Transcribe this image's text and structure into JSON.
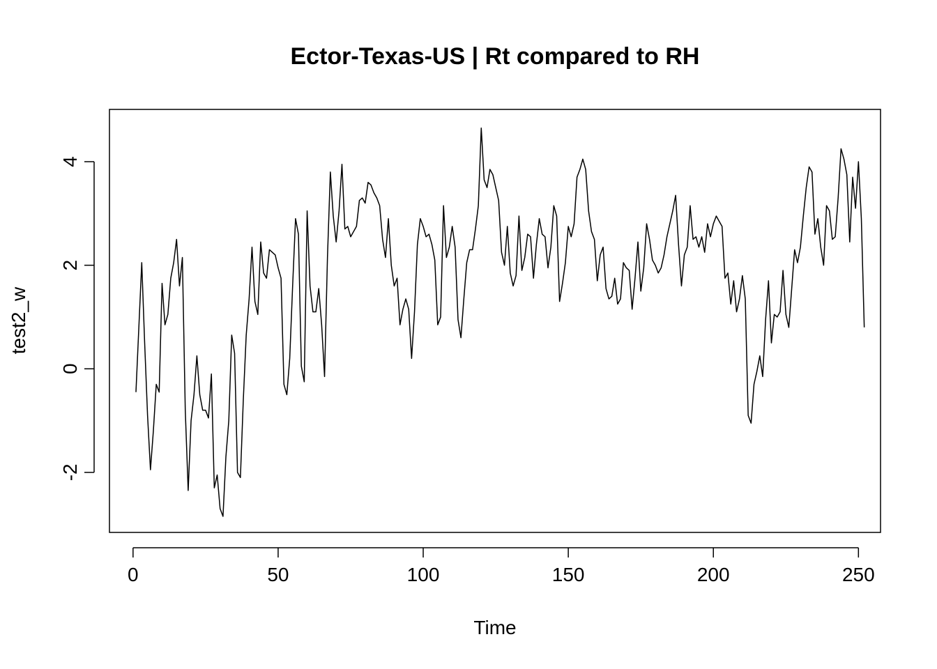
{
  "chart_data": {
    "type": "line",
    "title": "Ector-Texas-US | Rt compared to RH",
    "xlabel": "Time",
    "ylabel": "test2_w",
    "xlim": [
      1,
      248
    ],
    "ylim": [
      -2.85,
      4.7
    ],
    "x_ticks": [
      0,
      50,
      100,
      150,
      200,
      250
    ],
    "x_tick_labels": [
      "0",
      "50",
      "100",
      "150",
      "200",
      "250"
    ],
    "y_ticks": [
      -2,
      0,
      2,
      4
    ],
    "y_tick_labels": [
      "-2",
      "0",
      "2",
      "4"
    ],
    "grid": false,
    "color": "#000000",
    "series": [
      {
        "x_start": 1,
        "values": [
          -0.45,
          0.8,
          2.05,
          0.5,
          -0.9,
          -1.95,
          -1.2,
          -0.3,
          -0.45,
          1.65,
          0.85,
          1.05,
          1.75,
          2.05,
          2.5,
          1.6,
          2.15,
          -0.8,
          -2.35,
          -1.0,
          -0.5,
          0.25,
          -0.5,
          -0.8,
          -0.8,
          -0.95,
          -0.1,
          -2.3,
          -2.05,
          -2.7,
          -2.85,
          -1.7,
          -1.0,
          0.65,
          0.3,
          -2.0,
          -2.1,
          -0.6,
          0.65,
          1.35,
          2.35,
          1.3,
          1.05,
          2.45,
          1.85,
          1.75,
          2.3,
          2.25,
          2.2,
          1.95,
          1.75,
          -0.3,
          -0.5,
          0.2,
          1.6,
          2.9,
          2.6,
          0.05,
          -0.25,
          3.05,
          1.6,
          1.1,
          1.1,
          1.55,
          0.85,
          -0.15,
          2.15,
          3.8,
          2.95,
          2.45,
          3.05,
          3.95,
          2.7,
          2.75,
          2.55,
          2.65,
          2.75,
          3.25,
          3.3,
          3.2,
          3.6,
          3.55,
          3.4,
          3.3,
          3.15,
          2.5,
          2.15,
          2.9,
          2.0,
          1.6,
          1.75,
          0.85,
          1.15,
          1.35,
          1.15,
          0.2,
          1.1,
          2.4,
          2.9,
          2.75,
          2.55,
          2.6,
          2.4,
          2.1,
          0.85,
          1.0,
          3.15,
          2.15,
          2.35,
          2.75,
          2.35,
          0.95,
          0.6,
          1.35,
          2.05,
          2.3,
          2.3,
          2.7,
          3.15,
          4.65,
          3.65,
          3.5,
          3.85,
          3.75,
          3.5,
          3.25,
          2.25,
          2.0,
          2.75,
          1.85,
          1.6,
          1.8,
          2.95,
          1.9,
          2.15,
          2.6,
          2.55,
          1.75,
          2.4,
          2.9,
          2.6,
          2.55,
          1.95,
          2.35,
          3.15,
          2.95,
          1.3,
          1.65,
          2.05,
          2.75,
          2.55,
          2.8,
          3.7,
          3.85,
          4.05,
          3.85,
          3.05,
          2.65,
          2.5,
          1.7,
          2.2,
          2.35,
          1.55,
          1.35,
          1.4,
          1.75,
          1.25,
          1.35,
          2.05,
          1.95,
          1.9,
          1.15,
          1.75,
          2.45,
          1.5,
          1.95,
          2.8,
          2.5,
          2.1,
          2.0,
          1.85,
          1.95,
          2.2,
          2.55,
          2.8,
          3.05,
          3.35,
          2.4,
          1.6,
          2.2,
          2.35,
          3.15,
          2.5,
          2.55,
          2.35,
          2.55,
          2.25,
          2.8,
          2.55,
          2.8,
          2.95,
          2.85,
          2.75,
          1.75,
          1.85,
          1.25,
          1.7,
          1.1,
          1.35,
          1.8,
          1.35,
          -0.9,
          -1.05,
          -0.3,
          -0.05,
          0.25,
          -0.15,
          0.95,
          1.7,
          0.5,
          1.05,
          1.0,
          1.1,
          1.9,
          1.05,
          0.8,
          1.55,
          2.3,
          2.05,
          2.35,
          2.95,
          3.5,
          3.9,
          3.8,
          2.6,
          2.9,
          2.35,
          2.0,
          3.15,
          3.05,
          2.5,
          2.55,
          3.3,
          4.25,
          4.05,
          3.75,
          2.45,
          3.7,
          3.1,
          4.0,
          2.9,
          0.8
        ]
      }
    ]
  }
}
